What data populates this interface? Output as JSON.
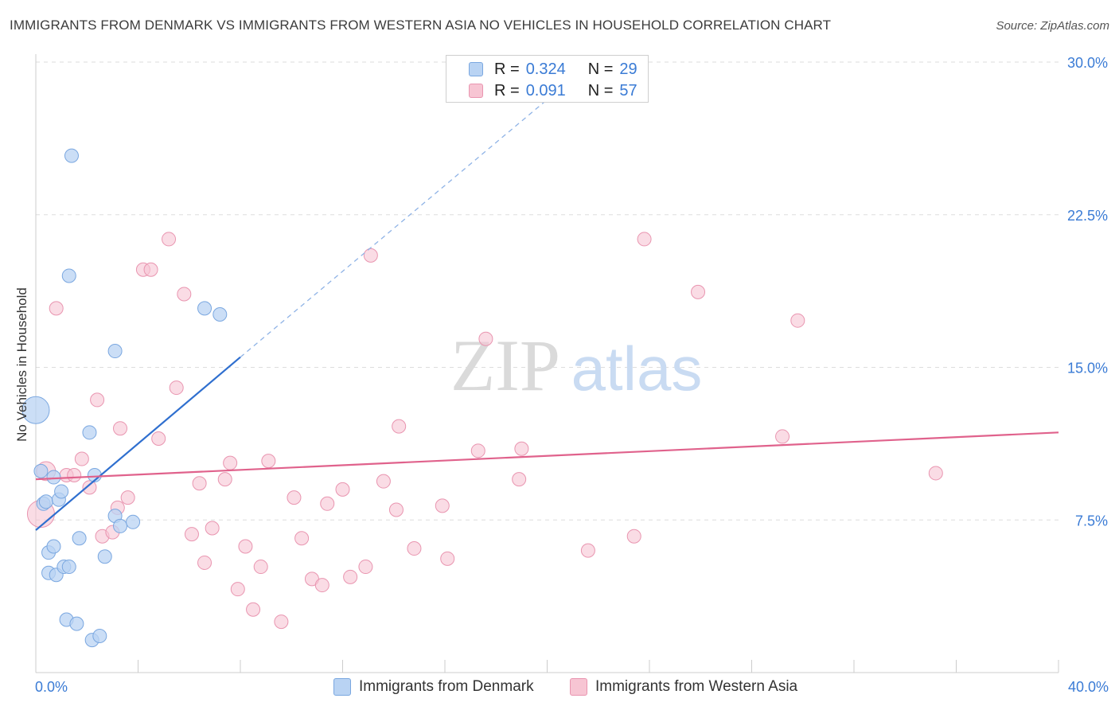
{
  "title": "IMMIGRANTS FROM DENMARK VS IMMIGRANTS FROM WESTERN ASIA NO VEHICLES IN HOUSEHOLD CORRELATION CHART",
  "source": "Source: ZipAtlas.com",
  "watermark": {
    "zip": "ZIP",
    "atlas": "atlas"
  },
  "legend": {
    "rows": [
      {
        "r_label": "R =",
        "r_value": "0.324",
        "n_label": "N =",
        "n_value": "29"
      },
      {
        "r_label": "R =",
        "r_value": "0.091",
        "n_label": "N =",
        "n_value": "57"
      }
    ]
  },
  "colors": {
    "denmark_fill": "#b9d3f3",
    "denmark_stroke": "#7aa7e0",
    "denmark_line": "#2f6fcf",
    "wasia_fill": "#f7c5d3",
    "wasia_stroke": "#e995b0",
    "wasia_line": "#e0628c",
    "axis_text": "#3a7bd5",
    "grid": "#dddddd"
  },
  "chart_data": {
    "type": "scatter",
    "title": "IMMIGRANTS FROM DENMARK VS IMMIGRANTS FROM WESTERN ASIA NO VEHICLES IN HOUSEHOLD CORRELATION CHART",
    "xlabel": "",
    "ylabel": "No Vehicles in Household",
    "xlim": [
      0,
      40
    ],
    "ylim": [
      0,
      30
    ],
    "x_tick_labels": [
      "0.0%",
      "40.0%"
    ],
    "y_ticks": [
      7.5,
      15.0,
      22.5,
      30.0
    ],
    "y_tick_labels": [
      "7.5%",
      "15.0%",
      "22.5%",
      "30.0%"
    ],
    "grid": true,
    "legend_position": "top-center",
    "series": [
      {
        "name": "Immigrants from Denmark",
        "color": "#b9d3f3",
        "r": 0.324,
        "n": 29,
        "points": [
          {
            "x": 0.0,
            "y": 12.9,
            "s": 2
          },
          {
            "x": 0.2,
            "y": 9.9
          },
          {
            "x": 0.3,
            "y": 8.3
          },
          {
            "x": 0.4,
            "y": 8.4
          },
          {
            "x": 0.5,
            "y": 5.9
          },
          {
            "x": 0.5,
            "y": 4.9
          },
          {
            "x": 0.7,
            "y": 6.2
          },
          {
            "x": 0.8,
            "y": 4.8
          },
          {
            "x": 0.7,
            "y": 9.6
          },
          {
            "x": 0.9,
            "y": 8.5
          },
          {
            "x": 1.0,
            "y": 8.9
          },
          {
            "x": 1.1,
            "y": 5.2
          },
          {
            "x": 1.2,
            "y": 2.6
          },
          {
            "x": 1.3,
            "y": 5.2
          },
          {
            "x": 1.3,
            "y": 19.5
          },
          {
            "x": 1.4,
            "y": 25.4
          },
          {
            "x": 1.6,
            "y": 2.4
          },
          {
            "x": 1.7,
            "y": 6.6
          },
          {
            "x": 2.1,
            "y": 11.8
          },
          {
            "x": 2.2,
            "y": 1.6
          },
          {
            "x": 2.3,
            "y": 9.7
          },
          {
            "x": 2.5,
            "y": 1.8
          },
          {
            "x": 2.7,
            "y": 5.7
          },
          {
            "x": 3.1,
            "y": 7.7
          },
          {
            "x": 3.1,
            "y": 15.8
          },
          {
            "x": 3.3,
            "y": 7.2
          },
          {
            "x": 3.8,
            "y": 7.4
          },
          {
            "x": 6.6,
            "y": 17.9
          },
          {
            "x": 7.2,
            "y": 17.6
          }
        ],
        "trend": {
          "x": [
            0,
            8
          ],
          "y": [
            7.0,
            15.5
          ],
          "dashed_to": {
            "x": 20.8,
            "y": 29.0
          }
        }
      },
      {
        "name": "Immigrants from Western Asia",
        "color": "#f7c5d3",
        "r": 0.091,
        "n": 57,
        "points": [
          {
            "x": 0.2,
            "y": 7.8,
            "s": 2
          },
          {
            "x": 0.4,
            "y": 9.9,
            "s": 1.4
          },
          {
            "x": 0.8,
            "y": 17.9
          },
          {
            "x": 1.2,
            "y": 9.7
          },
          {
            "x": 1.5,
            "y": 9.7
          },
          {
            "x": 1.8,
            "y": 10.5
          },
          {
            "x": 2.1,
            "y": 9.1
          },
          {
            "x": 2.4,
            "y": 13.4
          },
          {
            "x": 2.6,
            "y": 6.7
          },
          {
            "x": 3.0,
            "y": 6.9
          },
          {
            "x": 3.2,
            "y": 8.1
          },
          {
            "x": 3.3,
            "y": 12.0
          },
          {
            "x": 3.6,
            "y": 8.6
          },
          {
            "x": 4.2,
            "y": 19.8
          },
          {
            "x": 4.5,
            "y": 19.8
          },
          {
            "x": 4.8,
            "y": 11.5
          },
          {
            "x": 5.2,
            "y": 21.3
          },
          {
            "x": 5.5,
            "y": 14.0
          },
          {
            "x": 5.8,
            "y": 18.6
          },
          {
            "x": 6.1,
            "y": 6.8
          },
          {
            "x": 6.4,
            "y": 9.3
          },
          {
            "x": 6.6,
            "y": 5.4
          },
          {
            "x": 6.9,
            "y": 7.1
          },
          {
            "x": 7.4,
            "y": 9.5
          },
          {
            "x": 7.6,
            "y": 10.3
          },
          {
            "x": 7.9,
            "y": 4.1
          },
          {
            "x": 8.2,
            "y": 6.2
          },
          {
            "x": 8.5,
            "y": 3.1
          },
          {
            "x": 8.8,
            "y": 5.2
          },
          {
            "x": 9.1,
            "y": 10.4
          },
          {
            "x": 9.6,
            "y": 2.5
          },
          {
            "x": 10.1,
            "y": 8.6
          },
          {
            "x": 10.4,
            "y": 6.6
          },
          {
            "x": 10.8,
            "y": 4.6
          },
          {
            "x": 11.2,
            "y": 4.3
          },
          {
            "x": 11.4,
            "y": 8.3
          },
          {
            "x": 12.0,
            "y": 9.0
          },
          {
            "x": 12.3,
            "y": 4.7
          },
          {
            "x": 12.9,
            "y": 5.2
          },
          {
            "x": 13.1,
            "y": 20.5
          },
          {
            "x": 13.6,
            "y": 9.4
          },
          {
            "x": 14.1,
            "y": 8.0
          },
          {
            "x": 14.2,
            "y": 12.1
          },
          {
            "x": 14.8,
            "y": 6.1
          },
          {
            "x": 15.9,
            "y": 8.2
          },
          {
            "x": 16.1,
            "y": 5.6
          },
          {
            "x": 17.3,
            "y": 10.9
          },
          {
            "x": 17.6,
            "y": 16.4
          },
          {
            "x": 18.9,
            "y": 9.5
          },
          {
            "x": 19.0,
            "y": 11.0
          },
          {
            "x": 21.6,
            "y": 6.0
          },
          {
            "x": 23.4,
            "y": 6.7
          },
          {
            "x": 23.8,
            "y": 21.3
          },
          {
            "x": 25.9,
            "y": 18.7
          },
          {
            "x": 29.2,
            "y": 11.6
          },
          {
            "x": 29.8,
            "y": 17.3
          },
          {
            "x": 35.2,
            "y": 9.8
          }
        ],
        "trend": {
          "x": [
            0,
            40
          ],
          "y": [
            9.5,
            11.8
          ]
        }
      }
    ]
  }
}
